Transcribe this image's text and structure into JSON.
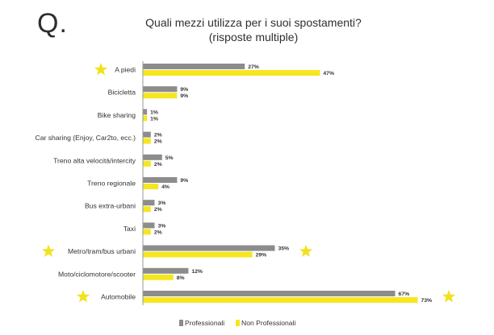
{
  "header": {
    "q_mark": "Q.",
    "title_line1": "Quali mezzi utilizza per i suoi spostamenti?",
    "title_line2": "(risposte multiple)"
  },
  "colors": {
    "professionali": "#8c8c8c",
    "non_professionali": "#f6e61f",
    "star": "#f2e21e",
    "axis": "#999999"
  },
  "chart_data": {
    "type": "bar",
    "orientation": "horizontal",
    "title": "Quali mezzi utilizza per i suoi spostamenti? (risposte multiple)",
    "categories": [
      "A piedi",
      "Bicicletta",
      "Bike sharing",
      "Car sharing (Enjoy, Car2to, ecc.)",
      "Treno alta velocità/intercity",
      "Treno regionale",
      "Bus extra-urbani",
      "Taxi",
      "Metro/tram/bus urbani",
      "Moto/ciclomotore/scooter",
      "Automobile"
    ],
    "series": [
      {
        "name": "Professionali",
        "values": [
          27,
          9,
          1,
          2,
          5,
          9,
          3,
          3,
          35,
          12,
          67
        ]
      },
      {
        "name": "Non Professionali",
        "values": [
          47,
          9,
          1,
          2,
          2,
          4,
          2,
          2,
          29,
          8,
          73
        ]
      }
    ],
    "value_suffix": "%",
    "xlim": [
      0,
      73
    ],
    "grid": false,
    "legend_position": "bottom",
    "highlighted": [
      "A piedi",
      "Metro/tram/bus urbani",
      "Automobile"
    ]
  }
}
